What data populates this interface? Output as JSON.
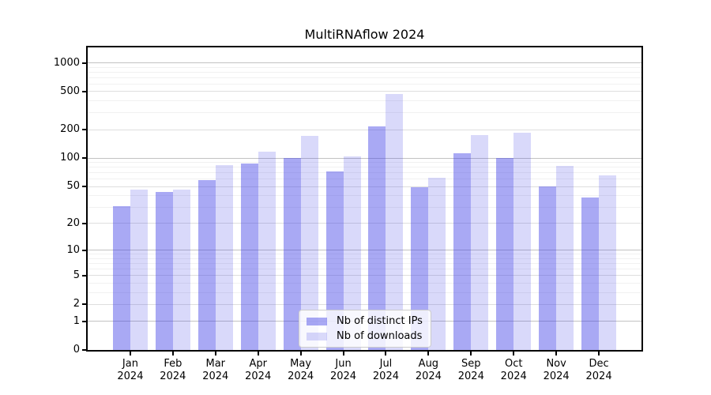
{
  "chart_data": {
    "type": "bar",
    "title": "MultiRNAflow 2024",
    "xlabel": "",
    "ylabel": "",
    "year_label": "2024",
    "categories": [
      "Jan",
      "Feb",
      "Mar",
      "Apr",
      "May",
      "Jun",
      "Jul",
      "Aug",
      "Sep",
      "Oct",
      "Nov",
      "Dec"
    ],
    "series": [
      {
        "name": "Nb of distinct IPs",
        "color_hex_on_white": "#a9a9f4",
        "css_color": "rgba(65,65,230,0.45)",
        "values": [
          31,
          44,
          59,
          88,
          100,
          72,
          216,
          49,
          112,
          100,
          50,
          38
        ]
      },
      {
        "name": "Nb of downloads",
        "color_hex_on_white": "#d9d9f7",
        "css_color": "rgba(65,65,230,0.20)",
        "values": [
          46,
          46,
          85,
          118,
          172,
          105,
          472,
          62,
          175,
          186,
          83,
          66
        ]
      }
    ],
    "y_axis": {
      "scale": "log1p",
      "ticks": [
        0,
        1,
        2,
        5,
        10,
        20,
        50,
        100,
        200,
        500,
        1000
      ],
      "ylim": [
        0,
        1450
      ]
    },
    "grid": {
      "on": true,
      "major": [
        1,
        10,
        100,
        1000
      ],
      "sub": [
        2,
        5,
        20,
        50,
        200,
        500
      ],
      "minor": [
        3,
        4,
        6,
        7,
        8,
        9,
        30,
        40,
        60,
        70,
        80,
        90,
        300,
        400,
        600,
        700,
        800,
        900
      ]
    },
    "legend": {
      "position": "bottom-center-inside"
    }
  }
}
